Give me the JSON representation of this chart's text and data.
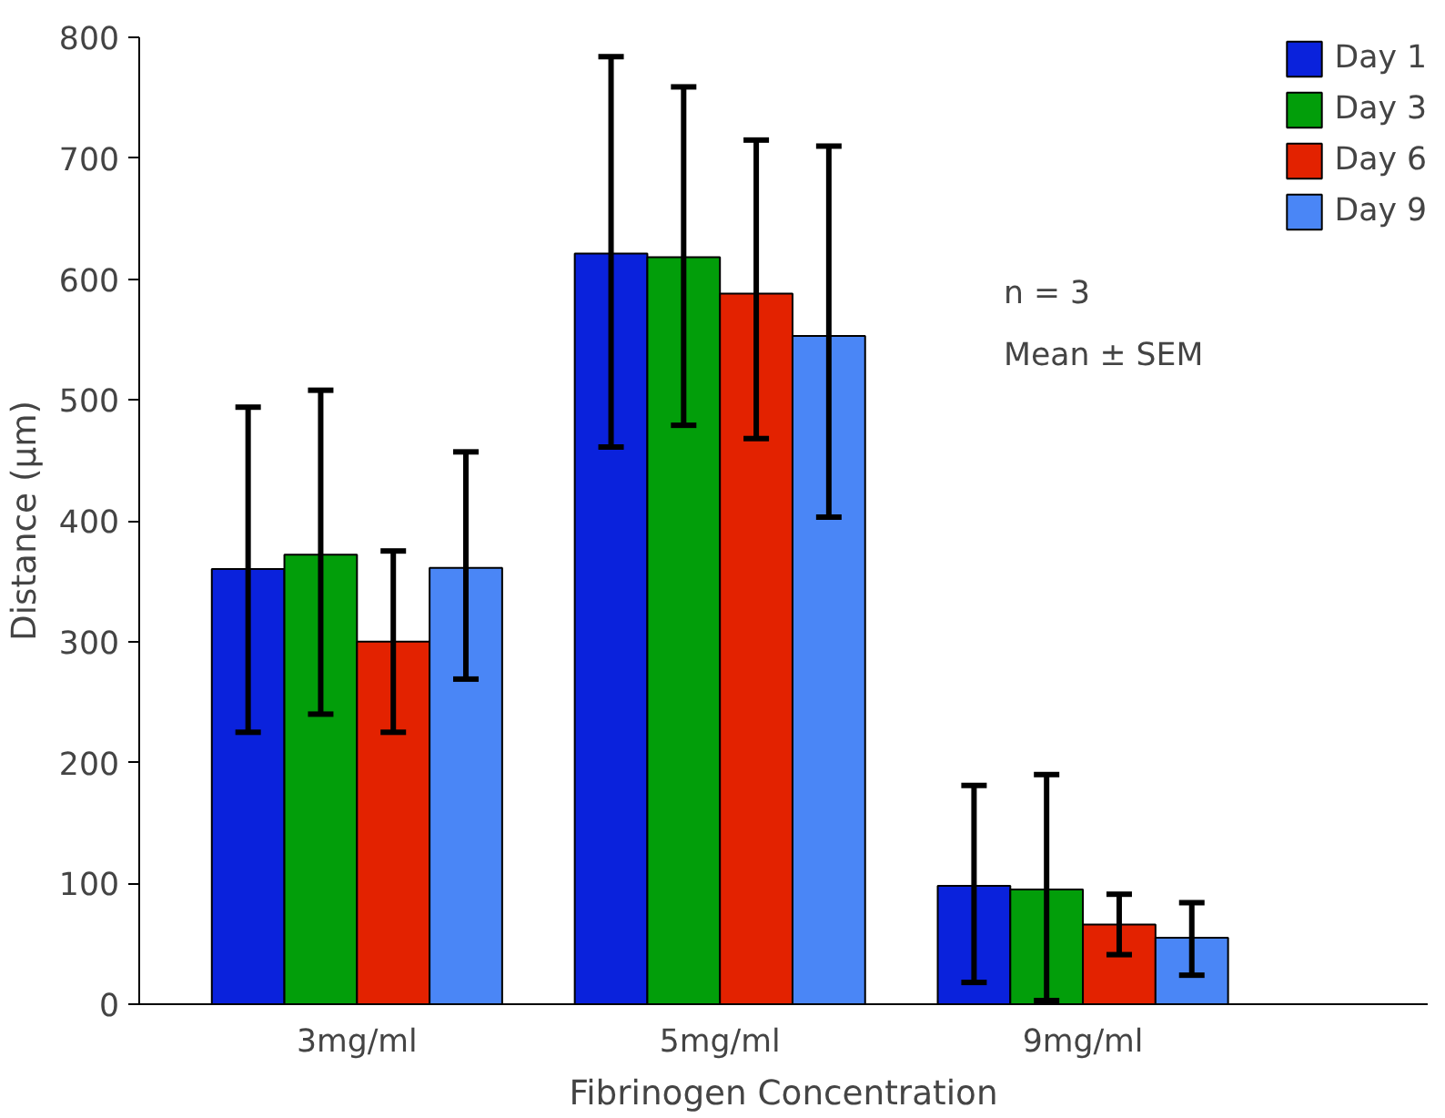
{
  "chart_data": {
    "type": "bar",
    "xlabel": "Fibrinogen Concentration",
    "ylabel": "Distance (µm)",
    "categories": [
      "3mg/ml",
      "5mg/ml",
      "9mg/ml"
    ],
    "series": [
      {
        "name": "Day 1",
        "color": "#0a22dc",
        "values": [
          360,
          621,
          98
        ],
        "errors": [
          [
            225,
            494
          ],
          [
            461,
            784
          ],
          [
            18,
            181
          ]
        ]
      },
      {
        "name": "Day 3",
        "color": "#029e0a",
        "values": [
          372,
          618,
          95
        ],
        "errors": [
          [
            240,
            508
          ],
          [
            479,
            759
          ],
          [
            3,
            190
          ]
        ]
      },
      {
        "name": "Day 6",
        "color": "#e32200",
        "values": [
          300,
          588,
          66
        ],
        "errors": [
          [
            225,
            375
          ],
          [
            468,
            715
          ],
          [
            41,
            91
          ]
        ]
      },
      {
        "name": "Day 9",
        "color": "#4a86f6",
        "values": [
          361,
          553,
          55
        ],
        "errors": [
          [
            269,
            457
          ],
          [
            403,
            710
          ],
          [
            24,
            84
          ]
        ]
      }
    ],
    "ylim": [
      0,
      800
    ],
    "yticks": [
      0,
      100,
      200,
      300,
      400,
      500,
      600,
      700,
      800
    ],
    "grid": false,
    "legend": "top right",
    "annotations": [
      "n = 3",
      "Mean ± SEM"
    ]
  }
}
